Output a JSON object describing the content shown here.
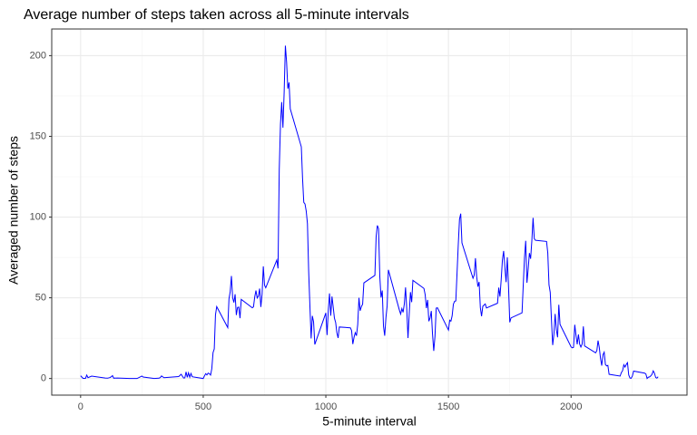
{
  "chart_data": {
    "type": "line",
    "title": "Average number of steps taken across all 5-minute intervals",
    "x_label": "5-minute interval",
    "y_label": "Averaged number of steps",
    "x": [
      0,
      10,
      20,
      25,
      30,
      45,
      100,
      110,
      120,
      125,
      130,
      135,
      150,
      200,
      230,
      250,
      255,
      300,
      320,
      325,
      330,
      340,
      400,
      410,
      420,
      425,
      430,
      435,
      440,
      445,
      450,
      455,
      500,
      505,
      510,
      515,
      520,
      525,
      530,
      535,
      540,
      545,
      550,
      555,
      600,
      605,
      610,
      615,
      620,
      625,
      630,
      635,
      640,
      645,
      650,
      655,
      700,
      705,
      710,
      715,
      720,
      725,
      730,
      735,
      740,
      745,
      750,
      755,
      800,
      805,
      810,
      815,
      820,
      825,
      830,
      835,
      840,
      845,
      850,
      855,
      900,
      905,
      910,
      915,
      920,
      925,
      930,
      935,
      940,
      945,
      950,
      955,
      1000,
      1005,
      1010,
      1015,
      1020,
      1025,
      1030,
      1035,
      1040,
      1045,
      1050,
      1055,
      1100,
      1105,
      1110,
      1115,
      1120,
      1125,
      1130,
      1135,
      1140,
      1145,
      1150,
      1155,
      1200,
      1205,
      1210,
      1215,
      1220,
      1225,
      1230,
      1235,
      1240,
      1245,
      1250,
      1255,
      1300,
      1305,
      1310,
      1315,
      1320,
      1325,
      1330,
      1335,
      1340,
      1345,
      1350,
      1355,
      1400,
      1405,
      1410,
      1415,
      1420,
      1425,
      1430,
      1435,
      1440,
      1445,
      1450,
      1455,
      1500,
      1505,
      1510,
      1515,
      1520,
      1525,
      1530,
      1535,
      1540,
      1545,
      1550,
      1555,
      1600,
      1605,
      1610,
      1615,
      1620,
      1625,
      1630,
      1635,
      1640,
      1645,
      1650,
      1655,
      1700,
      1705,
      1710,
      1715,
      1720,
      1725,
      1730,
      1735,
      1740,
      1745,
      1750,
      1755,
      1800,
      1805,
      1810,
      1815,
      1820,
      1825,
      1830,
      1835,
      1840,
      1845,
      1850,
      1855,
      1900,
      1905,
      1910,
      1915,
      1920,
      1925,
      1930,
      1935,
      1940,
      1945,
      1950,
      1955,
      2000,
      2005,
      2010,
      2015,
      2020,
      2025,
      2030,
      2035,
      2040,
      2045,
      2050,
      2055,
      2100,
      2105,
      2110,
      2115,
      2120,
      2125,
      2130,
      2135,
      2140,
      2145,
      2150,
      2155,
      2200,
      2205,
      2210,
      2215,
      2220,
      2225,
      2230,
      2235,
      2240,
      2245,
      2250,
      2255,
      2300,
      2305,
      2310,
      2315,
      2320,
      2325,
      2330,
      2335,
      2340,
      2345,
      2350,
      2355
    ],
    "series": [
      {
        "name": "Averaged number of steps",
        "color": "#0000ff",
        "values": [
          1.7,
          0.1,
          0.1,
          2.1,
          0.5,
          1.5,
          0.3,
          0.2,
          0.6,
          1.1,
          1.8,
          0.2,
          0.3,
          0,
          0,
          1.5,
          0.9,
          0,
          0.2,
          0.6,
          1.6,
          0.5,
          1.2,
          2.6,
          0.3,
          0.4,
          4.1,
          0.7,
          3.5,
          0.8,
          3.1,
          1.1,
          0,
          1.6,
          3.0,
          2.2,
          3.3,
          3.0,
          2.1,
          6.1,
          16.0,
          18.3,
          39.5,
          44.5,
          31.5,
          49.3,
          53.8,
          63.5,
          50.0,
          47.1,
          52.2,
          39.3,
          44.0,
          44.2,
          37.4,
          49.0,
          43.8,
          44.4,
          50.5,
          54.5,
          49.9,
          51.0,
          55.7,
          44.3,
          52.3,
          69.5,
          57.8,
          56.2,
          73.4,
          68.2,
          129.4,
          157.5,
          171.2,
          155.4,
          177.3,
          206.2,
          195.9,
          179.6,
          183.4,
          167.0,
          143.5,
          124.0,
          109.1,
          108.1,
          103.7,
          95.9,
          66.2,
          45.2,
          24.8,
          38.8,
          35.0,
          21.1,
          40.6,
          26.9,
          42.4,
          52.7,
          38.9,
          50.8,
          44.3,
          37.4,
          34.7,
          28.3,
          25.1,
          31.9,
          31.4,
          29.7,
          21.3,
          25.5,
          28.4,
          26.5,
          33.4,
          50.0,
          42.0,
          44.6,
          46.0,
          59.2,
          63.9,
          87.7,
          94.8,
          92.8,
          63.4,
          50.2,
          54.5,
          32.4,
          26.5,
          37.7,
          45.1,
          67.3,
          42.3,
          39.9,
          43.3,
          41.0,
          46.2,
          56.4,
          42.8,
          25.1,
          40.0,
          53.5,
          47.3,
          60.8,
          55.8,
          52.0,
          43.6,
          48.7,
          35.5,
          37.5,
          41.8,
          27.5,
          17.1,
          26.1,
          43.6,
          43.8,
          30.0,
          36.1,
          35.5,
          38.8,
          46.0,
          47.8,
          48.1,
          65.3,
          82.9,
          98.7,
          102.1,
          84.0,
          62.1,
          64.1,
          74.5,
          63.2,
          56.9,
          59.8,
          43.9,
          38.6,
          44.7,
          45.5,
          46.2,
          43.7,
          46.6,
          56.3,
          50.7,
          61.2,
          73.4,
          79.0,
          68.9,
          59.7,
          75.1,
          56.5,
          34.8,
          37.5,
          40.7,
          58.0,
          74.7,
          85.3,
          59.3,
          67.8,
          77.7,
          74.2,
          85.3,
          99.5,
          86.6,
          85.6,
          84.9,
          77.8,
          58.0,
          53.4,
          36.3,
          20.7,
          27.4,
          40.0,
          30.2,
          25.5,
          45.7,
          33.5,
          19.6,
          19.0,
          19.3,
          33.3,
          26.8,
          21.2,
          27.3,
          21.3,
          19.5,
          21.3,
          32.3,
          20.2,
          15.9,
          17.2,
          23.5,
          19.2,
          12.5,
          8.0,
          14.7,
          16.3,
          8.7,
          7.8,
          8.1,
          2.6,
          1.5,
          3.7,
          4.8,
          8.5,
          7.1,
          8.7,
          9.8,
          2.2,
          0.3,
          0.1,
          1.6,
          4.6,
          3.3,
          2.8,
          0,
          0.8,
          1.0,
          1.6,
          2.6,
          4.7,
          3.3,
          0.6,
          0.2,
          1.1
        ]
      }
    ],
    "xlim": [
      -117.75,
      2472.75
    ],
    "ylim": [
      -10.3,
      216.5
    ],
    "xticks": [
      0,
      500,
      1000,
      1500,
      2000
    ],
    "yticks": [
      0,
      50,
      100,
      150,
      200
    ],
    "grid": true
  }
}
